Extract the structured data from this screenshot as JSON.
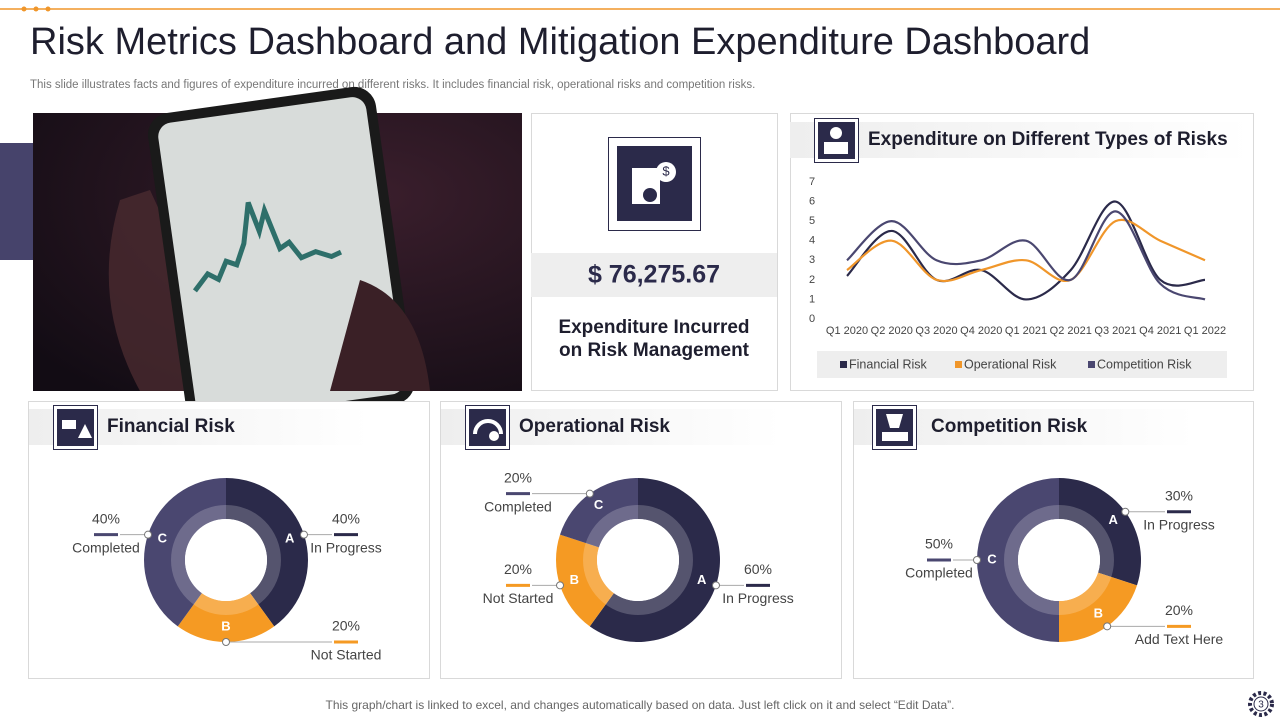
{
  "header": {
    "title": "Risk Metrics Dashboard and Mitigation Expenditure Dashboard",
    "subtitle": "This slide illustrates facts and figures of expenditure incurred on different risks. It includes financial risk, operational risks and competition risks."
  },
  "kpi": {
    "amount": "$ 76,275.67",
    "caption": "Expenditure Incurred on Risk Management"
  },
  "footer": {
    "note": "This graph/chart is linked to excel,  and changes automatically based on data. Just left click on it and select “Edit Data”.",
    "page": 3
  },
  "chart_data": [
    {
      "type": "line",
      "title": "Expenditure on Different Types of Risks",
      "categories": [
        "Q1 2020",
        "Q2 2020",
        "Q3 2020",
        "Q4 2020",
        "Q1 2021",
        "Q2 2021",
        "Q3 2021",
        "Q4 2021",
        "Q1 2022"
      ],
      "series": [
        {
          "name": "Financial Risk",
          "color": "#2b2a4a",
          "values": [
            2.2,
            4.5,
            2,
            2.5,
            1,
            2.5,
            6,
            2,
            2
          ]
        },
        {
          "name": "Operational Risk",
          "color": "#f0962a",
          "values": [
            2.5,
            4,
            2,
            2.5,
            3,
            2,
            5,
            4,
            3
          ]
        },
        {
          "name": "Competition Risk",
          "color": "#4a4770",
          "values": [
            3,
            5,
            3,
            3,
            4,
            2,
            5.5,
            1.8,
            1
          ]
        }
      ],
      "ylim": [
        0,
        7
      ],
      "yticks": [
        0,
        1,
        2,
        3,
        4,
        5,
        6,
        7
      ],
      "legend": "bottom"
    },
    {
      "type": "donut",
      "title": "Financial Risk",
      "categories": [
        "In Progress",
        "Not Started",
        "Completed"
      ],
      "letters": [
        "A",
        "B",
        "C"
      ],
      "values": [
        40,
        20,
        40
      ],
      "value_labels": [
        "40%",
        "20%",
        "40%"
      ],
      "colors": [
        "#2b2a4a",
        "#f59a23",
        "#4a4770"
      ]
    },
    {
      "type": "donut",
      "title": "Operational  Risk",
      "categories": [
        "In Progress",
        "Not Started",
        "Completed"
      ],
      "letters": [
        "A",
        "B",
        "C"
      ],
      "values": [
        60,
        20,
        20
      ],
      "value_labels": [
        "60%",
        "20%",
        "20%"
      ],
      "colors": [
        "#2b2a4a",
        "#f59a23",
        "#4a4770"
      ]
    },
    {
      "type": "donut",
      "title": "Competition Risk",
      "categories": [
        "In Progress",
        "Add Text Here",
        "Completed"
      ],
      "letters": [
        "A",
        "B",
        "C"
      ],
      "values": [
        30,
        20,
        50
      ],
      "value_labels": [
        "30%",
        "20%",
        "50%"
      ],
      "colors": [
        "#2b2a4a",
        "#f59a23",
        "#4a4770"
      ]
    }
  ]
}
